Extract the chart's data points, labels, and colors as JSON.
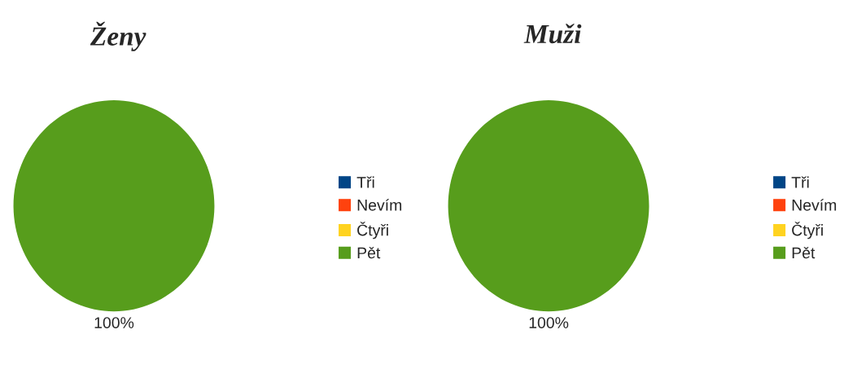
{
  "chart_data": [
    {
      "type": "pie",
      "title": "Ženy",
      "categories": [
        "Tři",
        "Nevím",
        "Čtyři",
        "Pět"
      ],
      "values": [
        0,
        0,
        0,
        100
      ],
      "colors": [
        "#004586",
        "#ff420e",
        "#ffd320",
        "#579d1c"
      ],
      "value_labels": [
        null,
        null,
        null,
        "100%"
      ],
      "legend": "right"
    },
    {
      "type": "pie",
      "title": "Muži",
      "categories": [
        "Tři",
        "Nevím",
        "Čtyři",
        "Pět"
      ],
      "values": [
        0,
        0,
        0,
        100
      ],
      "colors": [
        "#004586",
        "#ff420e",
        "#ffd320",
        "#579d1c"
      ],
      "value_labels": [
        null,
        null,
        null,
        "100%"
      ],
      "legend": "right"
    }
  ]
}
